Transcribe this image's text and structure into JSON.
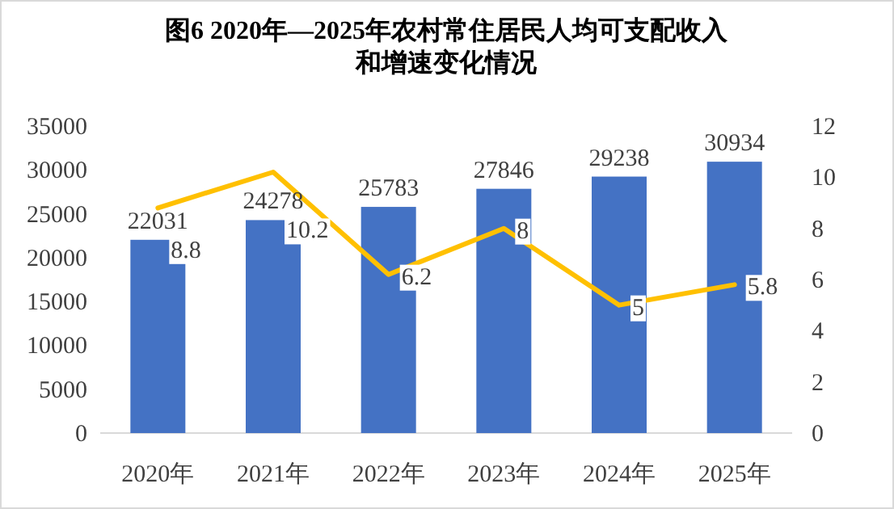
{
  "chart_data": {
    "type": "bar",
    "title": "图6  2020年—2025年农村常住居民人均可支配收入和增速变化情况",
    "categories": [
      "2020年",
      "2021年",
      "2022年",
      "2023年",
      "2024年",
      "2025年"
    ],
    "series": [
      {
        "color": "#4472c4",
        "values": [
          22031,
          24278,
          25783,
          27846,
          29238,
          30934
        ]
      },
      {
        "type": "line",
        "axis": "y2",
        "color": "#ffc000",
        "values": [
          8.8,
          10.2,
          6.2,
          8,
          5,
          5.8
        ]
      }
    ],
    "ylim": [
      0,
      35000
    ],
    "yticks": [
      0,
      5000,
      10000,
      15000,
      20000,
      25000,
      30000,
      35000
    ],
    "y2lim": [
      0,
      12
    ],
    "y2ticks": [
      0,
      2,
      4,
      6,
      8,
      10,
      12
    ],
    "data_labels": true,
    "grid": false,
    "marker": "none"
  }
}
